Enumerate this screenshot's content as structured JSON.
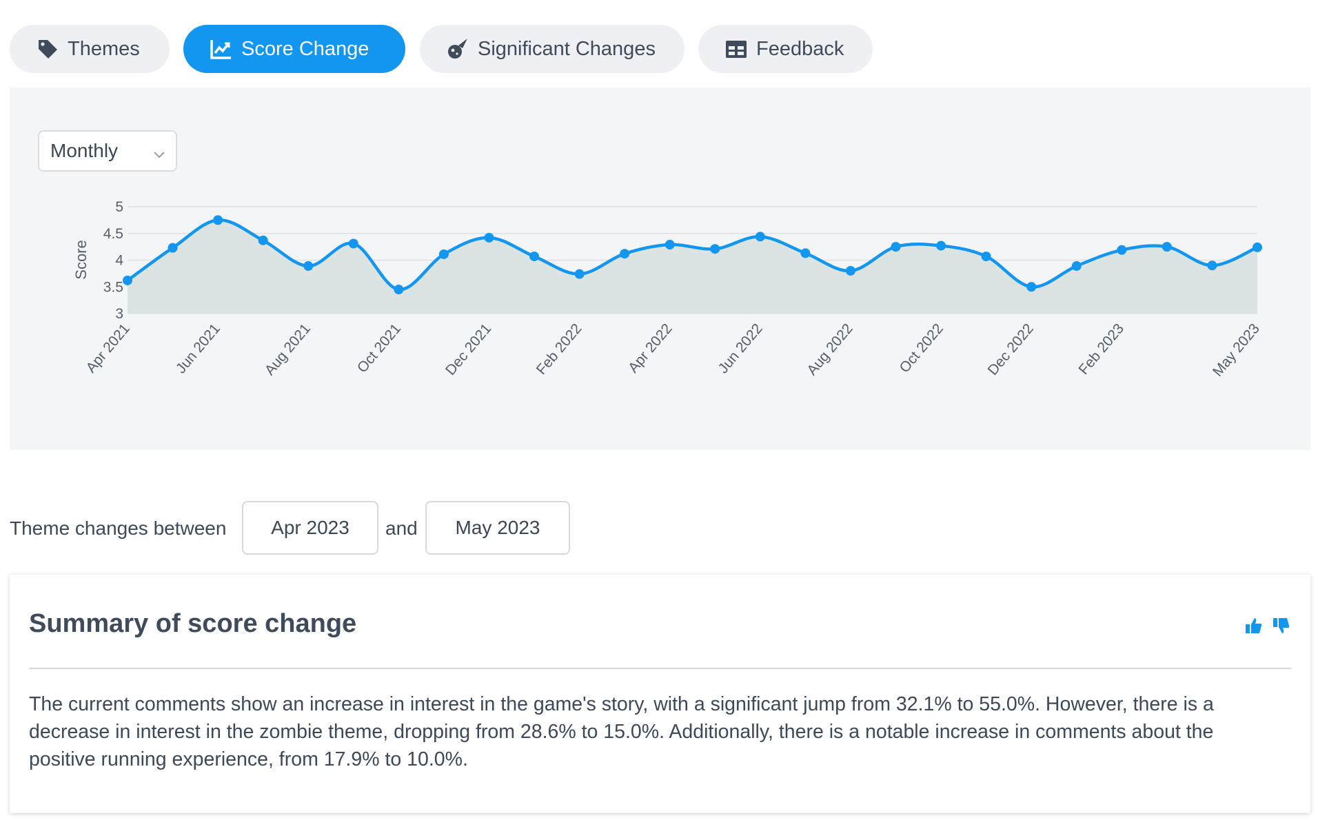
{
  "tabs": [
    {
      "label": "Themes",
      "icon": "tag-icon"
    },
    {
      "label": "Score Change",
      "icon": "line-chart-icon"
    },
    {
      "label": "Significant Changes",
      "icon": "meteor-icon"
    },
    {
      "label": "Feedback",
      "icon": "table-icon"
    }
  ],
  "period_select": {
    "value": "Monthly"
  },
  "chart_data": {
    "type": "line",
    "ylabel": "Score",
    "ylim": [
      3,
      5
    ],
    "yticks": [
      "3",
      "3.5",
      "4",
      "4.5",
      "5"
    ],
    "x": [
      "Apr 2021",
      "May 2021",
      "Jun 2021",
      "Jul 2021",
      "Aug 2021",
      "Sep 2021",
      "Oct 2021",
      "Nov 2021",
      "Dec 2021",
      "Jan 2022",
      "Feb 2022",
      "Mar 2022",
      "Apr 2022",
      "May 2022",
      "Jun 2022",
      "Jul 2022",
      "Aug 2022",
      "Sep 2022",
      "Oct 2022",
      "Nov 2022",
      "Dec 2022",
      "Jan 2023",
      "Feb 2023",
      "Mar 2023",
      "Apr 2023",
      "May 2023"
    ],
    "xticks": [
      "Apr 2021",
      "Jun 2021",
      "Aug 2021",
      "Oct 2021",
      "Dec 2021",
      "Feb 2022",
      "Apr 2022",
      "Jun 2022",
      "Aug 2022",
      "Oct 2022",
      "Dec 2022",
      "Feb 2023",
      "May 2023"
    ],
    "values": [
      3.62,
      4.23,
      4.75,
      4.37,
      3.89,
      4.31,
      3.45,
      4.11,
      4.42,
      4.07,
      3.74,
      4.12,
      4.29,
      4.21,
      4.44,
      4.13,
      3.8,
      4.25,
      4.27,
      4.07,
      3.5,
      3.89,
      4.19,
      4.25,
      3.9,
      4.24
    ],
    "series_color": "#1296f0",
    "fill_color": "#dce4e3"
  },
  "between": {
    "label": "Theme changes between",
    "from": "Apr 2023",
    "and": "and",
    "to": "May 2023"
  },
  "summary": {
    "title": "Summary of score change",
    "text": "The current comments show an increase in interest in the game's story, with a significant jump from 32.1% to 55.0%. However, there is a decrease in interest in the zombie theme, dropping from 28.6% to 15.0%. Additionally, there is a notable increase in comments about the positive running experience, from 17.9% to 10.0%."
  },
  "colors": {
    "accent": "#1296f0"
  }
}
